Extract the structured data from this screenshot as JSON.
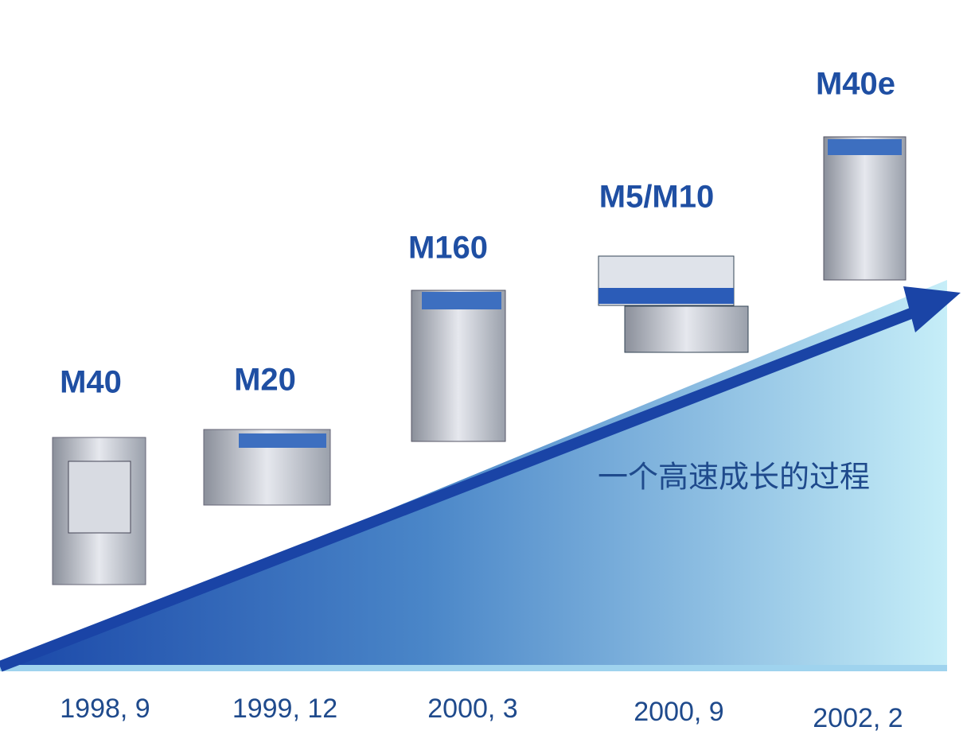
{
  "products": [
    {
      "name": "M40",
      "date": "1998, 9"
    },
    {
      "name": "M20",
      "date": "1999, 12"
    },
    {
      "name": "M160",
      "date": "2000, 3"
    },
    {
      "name": "M5/M10",
      "date": "2000, 9"
    },
    {
      "name": "M40e",
      "date": "2002, 2"
    }
  ],
  "slogan": "一个高速成长的过程"
}
